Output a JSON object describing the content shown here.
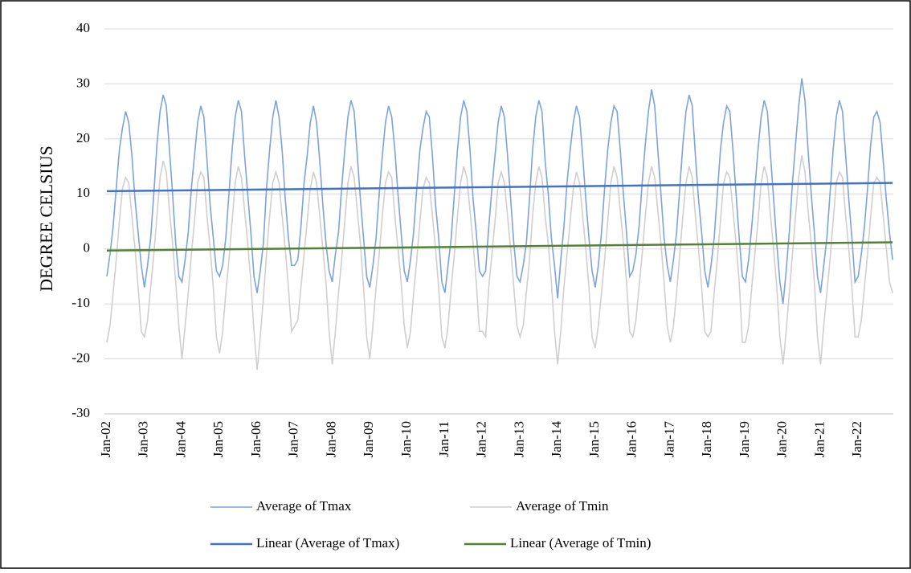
{
  "chart_data": {
    "type": "line",
    "y_label": "DEGREE CELSIUS",
    "ylim": [
      -30,
      40
    ],
    "yticks": [
      -30,
      -20,
      -10,
      0,
      10,
      20,
      30,
      40
    ],
    "grid": true,
    "categories": [
      "Jan-02",
      null,
      null,
      null,
      null,
      null,
      null,
      null,
      null,
      null,
      null,
      null,
      "Jan-03",
      null,
      null,
      null,
      null,
      null,
      null,
      null,
      null,
      null,
      null,
      null,
      "Jan-04",
      null,
      null,
      null,
      null,
      null,
      null,
      null,
      null,
      null,
      null,
      null,
      "Jan-05",
      null,
      null,
      null,
      null,
      null,
      null,
      null,
      null,
      null,
      null,
      null,
      "Jan-06",
      null,
      null,
      null,
      null,
      null,
      null,
      null,
      null,
      null,
      null,
      null,
      "Jan-07",
      null,
      null,
      null,
      null,
      null,
      null,
      null,
      null,
      null,
      null,
      null,
      "Jan-08",
      null,
      null,
      null,
      null,
      null,
      null,
      null,
      null,
      null,
      null,
      null,
      "Jan-09",
      null,
      null,
      null,
      null,
      null,
      null,
      null,
      null,
      null,
      null,
      null,
      "Jan-10",
      null,
      null,
      null,
      null,
      null,
      null,
      null,
      null,
      null,
      null,
      null,
      "Jan-11",
      null,
      null,
      null,
      null,
      null,
      null,
      null,
      null,
      null,
      null,
      null,
      "Jan-12",
      null,
      null,
      null,
      null,
      null,
      null,
      null,
      null,
      null,
      null,
      null,
      "Jan-13",
      null,
      null,
      null,
      null,
      null,
      null,
      null,
      null,
      null,
      null,
      null,
      "Jan-14",
      null,
      null,
      null,
      null,
      null,
      null,
      null,
      null,
      null,
      null,
      null,
      "Jan-15",
      null,
      null,
      null,
      null,
      null,
      null,
      null,
      null,
      null,
      null,
      null,
      "Jan-16",
      null,
      null,
      null,
      null,
      null,
      null,
      null,
      null,
      null,
      null,
      null,
      "Jan-17",
      null,
      null,
      null,
      null,
      null,
      null,
      null,
      null,
      null,
      null,
      null,
      "Jan-18",
      null,
      null,
      null,
      null,
      null,
      null,
      null,
      null,
      null,
      null,
      null,
      "Jan-19",
      null,
      null,
      null,
      null,
      null,
      null,
      null,
      null,
      null,
      null,
      null,
      "Jan-20",
      null,
      null,
      null,
      null,
      null,
      null,
      null,
      null,
      null,
      null,
      null,
      "Jan-21",
      null,
      null,
      null,
      null,
      null,
      null,
      null,
      null,
      null,
      null,
      null,
      "Jan-22",
      null,
      null,
      null,
      null,
      null,
      null,
      null,
      null,
      null,
      null,
      null
    ],
    "series": [
      {
        "name": "Average of Tmax",
        "color": "#7da3dc",
        "values": [
          -5,
          -1,
          4,
          11,
          18,
          22,
          25,
          23,
          17,
          9,
          3,
          -3,
          -7,
          -3,
          2,
          10,
          19,
          25,
          28,
          26,
          18,
          10,
          1,
          -5,
          -6,
          -2,
          3,
          11,
          17,
          23,
          26,
          24,
          16,
          8,
          2,
          -4,
          -5,
          -3,
          2,
          10,
          18,
          24,
          27,
          25,
          17,
          10,
          3,
          -5,
          -8,
          -4,
          1,
          11,
          18,
          24,
          27,
          24,
          18,
          9,
          2,
          -3,
          -3,
          -2,
          4,
          12,
          17,
          23,
          26,
          23,
          16,
          8,
          1,
          -4,
          -6,
          -1,
          3,
          11,
          18,
          24,
          27,
          25,
          17,
          9,
          2,
          -5,
          -7,
          -3,
          2,
          10,
          17,
          23,
          26,
          24,
          18,
          10,
          3,
          -4,
          -6,
          -2,
          3,
          11,
          18,
          22,
          25,
          24,
          17,
          8,
          2,
          -6,
          -8,
          -3,
          2,
          10,
          18,
          24,
          27,
          25,
          18,
          9,
          3,
          -4,
          -5,
          -4,
          4,
          11,
          17,
          23,
          26,
          24,
          17,
          9,
          1,
          -5,
          -6,
          -3,
          1,
          9,
          18,
          24,
          27,
          25,
          16,
          10,
          2,
          -3,
          -9,
          -2,
          4,
          12,
          18,
          23,
          26,
          24,
          17,
          9,
          2,
          -4,
          -7,
          -3,
          3,
          11,
          18,
          23,
          26,
          25,
          18,
          10,
          3,
          -5,
          -4,
          -1,
          4,
          12,
          19,
          25,
          29,
          26,
          18,
          10,
          2,
          -3,
          -6,
          -2,
          3,
          11,
          19,
          25,
          28,
          26,
          17,
          9,
          3,
          -4,
          -7,
          -3,
          2,
          10,
          18,
          23,
          26,
          25,
          18,
          10,
          2,
          -5,
          -6,
          -2,
          4,
          11,
          18,
          24,
          27,
          25,
          17,
          9,
          1,
          -6,
          -10,
          -4,
          3,
          12,
          19,
          26,
          31,
          27,
          18,
          10,
          3,
          -5,
          -8,
          -3,
          2,
          10,
          18,
          24,
          27,
          25,
          17,
          9,
          2,
          -6,
          -5,
          -1,
          4,
          11,
          19,
          24,
          25,
          23,
          16,
          9,
          3,
          -2
        ]
      },
      {
        "name": "Average of Tmin",
        "color": "#d0cece",
        "values": [
          -17,
          -14,
          -8,
          -2,
          5,
          11,
          13,
          12,
          6,
          0,
          -7,
          -15,
          -16,
          -13,
          -7,
          -1,
          6,
          13,
          16,
          14,
          7,
          1,
          -6,
          -14,
          -20,
          -14,
          -8,
          -1,
          5,
          12,
          14,
          13,
          6,
          0,
          -7,
          -16,
          -19,
          -15,
          -8,
          -2,
          5,
          12,
          15,
          13,
          7,
          1,
          -6,
          -15,
          -22,
          -16,
          -9,
          -1,
          6,
          12,
          14,
          12,
          6,
          0,
          -7,
          -15,
          -14,
          -13,
          -7,
          -1,
          5,
          11,
          14,
          12,
          6,
          0,
          -6,
          -15,
          -21,
          -15,
          -8,
          -2,
          5,
          12,
          15,
          13,
          7,
          1,
          -7,
          -16,
          -20,
          -14,
          -7,
          -1,
          6,
          12,
          14,
          13,
          6,
          0,
          -6,
          -14,
          -18,
          -15,
          -8,
          -2,
          5,
          11,
          13,
          12,
          6,
          0,
          -7,
          -16,
          -18,
          -14,
          -7,
          -1,
          6,
          12,
          15,
          13,
          7,
          1,
          -6,
          -15,
          -15,
          -16,
          -7,
          -1,
          5,
          12,
          14,
          12,
          6,
          0,
          -7,
          -14,
          -16,
          -14,
          -8,
          -2,
          6,
          12,
          15,
          13,
          6,
          1,
          -6,
          -15,
          -21,
          -15,
          -7,
          -1,
          5,
          11,
          14,
          12,
          6,
          0,
          -7,
          -16,
          -18,
          -14,
          -8,
          -2,
          5,
          12,
          15,
          13,
          7,
          1,
          -6,
          -15,
          -16,
          -13,
          -7,
          -1,
          6,
          12,
          15,
          13,
          7,
          1,
          -6,
          -14,
          -17,
          -14,
          -8,
          -1,
          6,
          12,
          15,
          13,
          6,
          0,
          -7,
          -15,
          -16,
          -15,
          -8,
          -2,
          5,
          12,
          14,
          13,
          7,
          1,
          -6,
          -17,
          -17,
          -14,
          -7,
          -1,
          5,
          12,
          15,
          13,
          6,
          0,
          -7,
          -16,
          -21,
          -15,
          -8,
          -1,
          6,
          13,
          17,
          14,
          7,
          1,
          -6,
          -16,
          -21,
          -14,
          -8,
          -2,
          5,
          12,
          14,
          13,
          6,
          0,
          -7,
          -16,
          -16,
          -13,
          -7,
          -1,
          6,
          12,
          13,
          12,
          6,
          0,
          -6,
          -8
        ]
      }
    ],
    "trendlines": [
      {
        "name": "Linear (Average of Tmax)",
        "color": "#4472c4",
        "values": [
          10.5,
          12
        ]
      },
      {
        "name": "Linear (Average of Tmin)",
        "color": "#548235",
        "values": [
          -0.3,
          1.2
        ]
      }
    ]
  }
}
